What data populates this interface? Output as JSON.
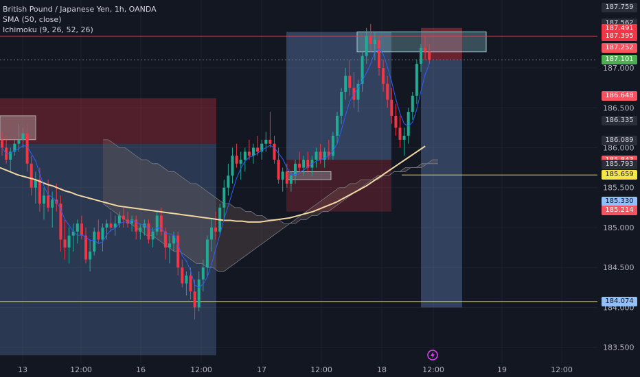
{
  "header": {
    "symbol_title": "British Pound / Japanese Yen, 1h, OANDA",
    "indicators": [
      "SMA (50, close)",
      "Ichimoku (9, 26, 52, 26)"
    ]
  },
  "price_badges": [
    {
      "value": "187.759",
      "bg": "#2a2e39",
      "fg": "#d1d4dc"
    },
    {
      "value": "187.562",
      "bg": "#2a2e39",
      "fg": "#d1d4dc"
    },
    {
      "value": "187.491",
      "bg": "#f23645",
      "fg": "#ffffff"
    },
    {
      "value": "187.395",
      "bg": "#f23645",
      "fg": "#ffffff"
    },
    {
      "value": "187.252",
      "bg": "#f7525f",
      "fg": "#ffffff"
    },
    {
      "value": "187.101",
      "bg": "#4caf50",
      "fg": "#ffffff"
    },
    {
      "value": "186.648",
      "bg": "#f7525f",
      "fg": "#ffffff"
    },
    {
      "value": "186.335",
      "bg": "#2a2e39",
      "fg": "#d1d4dc"
    },
    {
      "value": "186.089",
      "bg": "#2a2e39",
      "fg": "#d1d4dc"
    },
    {
      "value": "185.843",
      "bg": "#f7525f",
      "fg": "#ffffff"
    },
    {
      "value": "185.793",
      "bg": "#2a2e39",
      "fg": "#d1d4dc"
    },
    {
      "value": "185.659",
      "bg": "#f5e642",
      "fg": "#131722"
    },
    {
      "value": "185.330",
      "bg": "#90bff9",
      "fg": "#131722"
    },
    {
      "value": "185.214",
      "bg": "#f7525f",
      "fg": "#ffffff"
    },
    {
      "value": "184.074",
      "bg": "#90bff9",
      "fg": "#131722"
    }
  ],
  "colors": {
    "background": "#131722",
    "up": "#26a69a",
    "up_bright": "#22ab94",
    "down": "#f23645",
    "sma": "#f3d8a3",
    "tenkan": "#2962ff",
    "grid": "#1e222d",
    "yellow": "#f5e642"
  },
  "chart_data": {
    "type": "candlestick",
    "title": "British Pound / Japanese Yen, 1h, OANDA",
    "ylim": [
      183.3,
      187.85
    ],
    "y_ticks": [
      183.5,
      184.0,
      184.5,
      185.0,
      185.5,
      186.0,
      186.5,
      187.0
    ],
    "x_ticks": [
      "13",
      "12:00",
      "16",
      "12:00",
      "17",
      "12:00",
      "18",
      "12:00",
      "19",
      "12:00"
    ],
    "candles": [
      [
        186.1,
        186.2,
        185.9,
        186.0
      ],
      [
        186.0,
        186.15,
        185.8,
        185.85
      ],
      [
        185.85,
        186.0,
        185.7,
        185.95
      ],
      [
        185.95,
        186.1,
        185.9,
        186.05
      ],
      [
        186.05,
        186.3,
        185.95,
        186.1
      ],
      [
        186.1,
        186.25,
        186.0,
        186.18
      ],
      [
        186.18,
        186.3,
        185.7,
        185.8
      ],
      [
        185.8,
        185.9,
        185.4,
        185.5
      ],
      [
        185.5,
        185.7,
        185.3,
        185.6
      ],
      [
        185.6,
        185.75,
        185.2,
        185.3
      ],
      [
        185.3,
        185.5,
        185.1,
        185.4
      ],
      [
        185.4,
        185.6,
        185.2,
        185.25
      ],
      [
        185.25,
        185.45,
        185.0,
        185.35
      ],
      [
        185.35,
        185.55,
        185.2,
        185.3
      ],
      [
        185.3,
        185.4,
        184.7,
        184.85
      ],
      [
        184.85,
        185.1,
        184.6,
        184.75
      ],
      [
        184.75,
        185.0,
        184.55,
        184.9
      ],
      [
        184.9,
        185.05,
        184.7,
        184.95
      ],
      [
        184.95,
        185.1,
        184.8,
        185.05
      ],
      [
        185.05,
        185.15,
        184.85,
        184.9
      ],
      [
        184.9,
        185.0,
        184.55,
        184.6
      ],
      [
        184.6,
        184.85,
        184.45,
        184.7
      ],
      [
        184.7,
        185.0,
        184.65,
        184.95
      ],
      [
        184.95,
        185.1,
        184.8,
        184.85
      ],
      [
        184.85,
        185.05,
        184.7,
        185.0
      ],
      [
        185.0,
        185.1,
        184.85,
        185.05
      ],
      [
        185.05,
        185.2,
        184.95,
        185.0
      ],
      [
        185.0,
        185.15,
        184.9,
        185.05
      ],
      [
        185.05,
        185.2,
        185.0,
        185.15
      ],
      [
        185.15,
        185.25,
        185.0,
        185.1
      ],
      [
        185.1,
        185.2,
        185.0,
        185.05
      ],
      [
        185.05,
        185.15,
        184.95,
        185.1
      ],
      [
        185.1,
        185.15,
        184.85,
        184.95
      ],
      [
        184.95,
        185.05,
        184.85,
        185.0
      ],
      [
        185.0,
        185.1,
        184.9,
        185.05
      ],
      [
        185.05,
        185.1,
        184.8,
        184.85
      ],
      [
        184.85,
        185.0,
        184.75,
        184.95
      ],
      [
        184.95,
        185.2,
        184.9,
        185.15
      ],
      [
        185.15,
        185.25,
        184.9,
        184.95
      ],
      [
        184.95,
        185.0,
        184.6,
        184.75
      ],
      [
        184.75,
        184.9,
        184.55,
        184.8
      ],
      [
        184.8,
        184.95,
        184.7,
        184.9
      ],
      [
        184.9,
        184.95,
        184.4,
        184.5
      ],
      [
        184.5,
        184.6,
        184.25,
        184.3
      ],
      [
        184.3,
        184.45,
        184.15,
        184.4
      ],
      [
        184.4,
        184.5,
        184.1,
        184.2
      ],
      [
        184.2,
        184.35,
        183.85,
        184.0
      ],
      [
        184.0,
        184.45,
        183.95,
        184.35
      ],
      [
        184.35,
        184.6,
        184.2,
        184.5
      ],
      [
        184.5,
        184.9,
        184.4,
        184.85
      ],
      [
        184.85,
        185.1,
        184.7,
        185.0
      ],
      [
        185.0,
        185.2,
        184.85,
        184.95
      ],
      [
        184.95,
        185.3,
        184.9,
        185.25
      ],
      [
        185.25,
        185.6,
        185.1,
        185.5
      ],
      [
        185.5,
        185.8,
        185.4,
        185.65
      ],
      [
        185.65,
        186.0,
        185.55,
        185.9
      ],
      [
        185.9,
        186.05,
        185.75,
        185.8
      ],
      [
        185.8,
        185.95,
        185.6,
        185.85
      ],
      [
        185.85,
        186.0,
        185.7,
        185.95
      ],
      [
        185.95,
        186.1,
        185.85,
        185.9
      ],
      [
        185.9,
        186.05,
        185.8,
        186.0
      ],
      [
        186.0,
        186.15,
        185.9,
        185.95
      ],
      [
        185.95,
        186.1,
        185.85,
        186.05
      ],
      [
        186.05,
        186.2,
        185.95,
        186.1
      ],
      [
        186.1,
        186.45,
        186.0,
        186.05
      ],
      [
        186.05,
        186.15,
        185.8,
        185.85
      ],
      [
        185.85,
        186.0,
        185.55,
        185.6
      ],
      [
        185.6,
        185.75,
        185.45,
        185.7
      ],
      [
        185.7,
        185.8,
        185.5,
        185.55
      ],
      [
        185.55,
        185.7,
        185.45,
        185.65
      ],
      [
        185.65,
        185.85,
        185.55,
        185.8
      ],
      [
        185.8,
        185.95,
        185.7,
        185.75
      ],
      [
        185.75,
        185.9,
        185.65,
        185.85
      ],
      [
        185.85,
        185.95,
        185.7,
        185.75
      ],
      [
        185.75,
        185.9,
        185.65,
        185.85
      ],
      [
        185.85,
        186.0,
        185.75,
        185.95
      ],
      [
        185.95,
        186.05,
        185.8,
        185.85
      ],
      [
        185.85,
        186.0,
        185.75,
        185.95
      ],
      [
        185.95,
        186.1,
        185.85,
        185.9
      ],
      [
        185.9,
        186.2,
        185.85,
        186.15
      ],
      [
        186.15,
        186.45,
        186.05,
        186.4
      ],
      [
        186.4,
        186.75,
        186.3,
        186.7
      ],
      [
        186.7,
        187.0,
        186.6,
        186.9
      ],
      [
        186.9,
        187.1,
        186.65,
        186.75
      ],
      [
        186.75,
        186.95,
        186.5,
        186.6
      ],
      [
        186.6,
        186.85,
        186.45,
        186.8
      ],
      [
        186.8,
        187.2,
        186.7,
        187.15
      ],
      [
        187.15,
        187.5,
        187.05,
        187.4
      ],
      [
        187.4,
        187.55,
        187.2,
        187.3
      ],
      [
        187.3,
        187.45,
        187.1,
        187.35
      ],
      [
        187.35,
        187.4,
        186.9,
        187.0
      ],
      [
        187.0,
        187.1,
        186.7,
        186.8
      ],
      [
        186.8,
        186.9,
        186.5,
        186.6
      ],
      [
        186.6,
        186.75,
        186.3,
        186.4
      ],
      [
        186.4,
        186.55,
        186.15,
        186.25
      ],
      [
        186.25,
        186.4,
        186.0,
        186.1
      ],
      [
        186.1,
        186.25,
        185.9,
        186.15
      ],
      [
        186.15,
        186.5,
        186.05,
        186.45
      ],
      [
        186.45,
        186.7,
        186.35,
        186.65
      ],
      [
        186.65,
        187.1,
        186.55,
        187.05
      ],
      [
        187.05,
        187.3,
        186.95,
        187.25
      ],
      [
        187.25,
        187.4,
        187.1,
        187.2
      ],
      [
        187.2,
        187.3,
        187.05,
        187.1
      ]
    ],
    "sma_50": [
      185.75,
      185.72,
      185.69,
      185.66,
      185.64,
      185.62,
      185.6,
      185.57,
      185.54,
      185.52,
      185.49,
      185.46,
      185.44,
      185.41,
      185.39,
      185.37,
      185.35,
      185.33,
      185.31,
      185.29,
      185.27,
      185.26,
      185.25,
      185.24,
      185.23,
      185.22,
      185.21,
      185.2,
      185.19,
      185.18,
      185.17,
      185.16,
      185.15,
      185.14,
      185.13,
      185.12,
      185.11,
      185.1,
      185.09,
      185.09,
      185.08,
      185.08,
      185.07,
      185.07,
      185.07,
      185.08,
      185.09,
      185.1,
      185.11,
      185.12,
      185.14,
      185.16,
      185.18,
      185.2,
      185.23,
      185.26,
      185.29,
      185.32,
      185.36,
      185.4,
      185.44,
      185.48,
      185.52,
      185.57,
      185.62,
      185.67,
      185.72,
      185.77,
      185.82,
      185.87,
      185.92,
      185.97,
      186.02
    ],
    "ichimoku_cloud_upper": [
      186.1,
      186.1,
      186.05,
      186.0,
      186.0,
      185.95,
      185.9,
      185.85,
      185.85,
      185.8,
      185.8,
      185.75,
      185.7,
      185.7,
      185.65,
      185.6,
      185.55,
      185.55,
      185.5,
      185.45,
      185.4,
      185.35,
      185.3,
      185.3,
      185.25,
      185.25,
      185.2,
      185.2,
      185.15,
      185.15,
      185.1,
      185.1,
      185.1,
      185.05,
      185.05,
      185.05,
      185.1,
      185.1,
      185.15,
      185.15,
      185.2,
      185.2,
      185.25,
      185.3,
      185.35,
      185.4,
      185.45,
      185.5,
      185.55,
      185.6,
      185.6,
      185.65,
      185.65,
      185.7,
      185.7,
      185.75,
      185.75,
      185.75,
      185.8,
      185.8,
      185.85,
      185.85
    ],
    "ichimoku_cloud_lower": [
      185.3,
      185.25,
      185.2,
      185.15,
      185.1,
      185.05,
      185.0,
      184.95,
      184.9,
      184.9,
      184.85,
      184.8,
      184.75,
      184.7,
      184.7,
      184.65,
      184.6,
      184.55,
      184.55,
      184.5,
      184.5,
      184.45,
      184.45,
      184.5,
      184.55,
      184.6,
      184.65,
      184.7,
      184.75,
      184.8,
      184.85,
      184.9,
      184.95,
      185.0,
      185.05,
      185.1,
      185.15,
      185.2,
      185.25,
      185.3,
      185.35,
      185.4,
      185.45,
      185.5,
      185.5,
      185.55,
      185.55,
      185.6,
      185.6,
      185.6,
      185.65,
      185.65,
      185.65,
      185.7,
      185.7,
      185.7,
      185.75,
      185.75,
      185.75,
      185.8,
      185.8,
      185.8
    ],
    "horizontal_lines": [
      {
        "value": 185.659,
        "color": "#f5e642"
      },
      {
        "value": 184.074,
        "color": "#f5e642"
      },
      {
        "value": 187.395,
        "color": "#f23645"
      },
      {
        "value": 187.101,
        "color": "#787b86"
      }
    ]
  }
}
